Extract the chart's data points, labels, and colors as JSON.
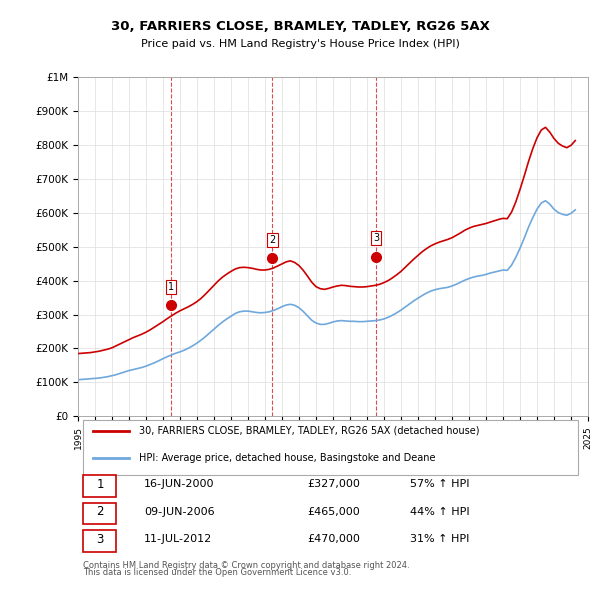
{
  "title": "30, FARRIERS CLOSE, BRAMLEY, TADLEY, RG26 5AX",
  "subtitle": "Price paid vs. HM Land Registry's House Price Index (HPI)",
  "ylim": [
    0,
    1000000
  ],
  "yticks": [
    0,
    100000,
    200000,
    300000,
    400000,
    500000,
    600000,
    700000,
    800000,
    900000,
    1000000
  ],
  "ytick_labels": [
    "£0",
    "£100K",
    "£200K",
    "£300K",
    "£400K",
    "£500K",
    "£600K",
    "£700K",
    "£800K",
    "£900K",
    "£1M"
  ],
  "hpi_color": "#6fa8dc",
  "price_color": "#cc0000",
  "vline_color": "#cc0000",
  "grid_color": "#dddddd",
  "background_color": "#ffffff",
  "transactions": [
    {
      "label": "1",
      "date": "16-JUN-2000",
      "year": 2000.46,
      "price": 327000,
      "hpi_pct": "57% ↑ HPI"
    },
    {
      "label": "2",
      "date": "09-JUN-2006",
      "year": 2006.44,
      "price": 465000,
      "hpi_pct": "44% ↑ HPI"
    },
    {
      "label": "3",
      "date": "11-JUL-2012",
      "year": 2012.53,
      "price": 470000,
      "hpi_pct": "31% ↑ HPI"
    }
  ],
  "legend_line1": "30, FARRIERS CLOSE, BRAMLEY, TADLEY, RG26 5AX (detached house)",
  "legend_line2": "HPI: Average price, detached house, Basingstoke and Deane",
  "footnote1": "Contains HM Land Registry data © Crown copyright and database right 2024.",
  "footnote2": "This data is licensed under the Open Government Licence v3.0.",
  "hpi_data": {
    "years": [
      1995.0,
      1995.25,
      1995.5,
      1995.75,
      1996.0,
      1996.25,
      1996.5,
      1996.75,
      1997.0,
      1997.25,
      1997.5,
      1997.75,
      1998.0,
      1998.25,
      1998.5,
      1998.75,
      1999.0,
      1999.25,
      1999.5,
      1999.75,
      2000.0,
      2000.25,
      2000.5,
      2000.75,
      2001.0,
      2001.25,
      2001.5,
      2001.75,
      2002.0,
      2002.25,
      2002.5,
      2002.75,
      2003.0,
      2003.25,
      2003.5,
      2003.75,
      2004.0,
      2004.25,
      2004.5,
      2004.75,
      2005.0,
      2005.25,
      2005.5,
      2005.75,
      2006.0,
      2006.25,
      2006.5,
      2006.75,
      2007.0,
      2007.25,
      2007.5,
      2007.75,
      2008.0,
      2008.25,
      2008.5,
      2008.75,
      2009.0,
      2009.25,
      2009.5,
      2009.75,
      2010.0,
      2010.25,
      2010.5,
      2010.75,
      2011.0,
      2011.25,
      2011.5,
      2011.75,
      2012.0,
      2012.25,
      2012.5,
      2012.75,
      2013.0,
      2013.25,
      2013.5,
      2013.75,
      2014.0,
      2014.25,
      2014.5,
      2014.75,
      2015.0,
      2015.25,
      2015.5,
      2015.75,
      2016.0,
      2016.25,
      2016.5,
      2016.75,
      2017.0,
      2017.25,
      2017.5,
      2017.75,
      2018.0,
      2018.25,
      2018.5,
      2018.75,
      2019.0,
      2019.25,
      2019.5,
      2019.75,
      2020.0,
      2020.25,
      2020.5,
      2020.75,
      2021.0,
      2021.25,
      2021.5,
      2021.75,
      2022.0,
      2022.25,
      2022.5,
      2022.75,
      2023.0,
      2023.25,
      2023.5,
      2023.75,
      2024.0,
      2024.25
    ],
    "values": [
      108000,
      109000,
      110000,
      111000,
      112000,
      113000,
      115000,
      117000,
      120000,
      123000,
      127000,
      131000,
      135000,
      138000,
      141000,
      144000,
      148000,
      153000,
      158000,
      164000,
      170000,
      176000,
      181000,
      186000,
      190000,
      195000,
      201000,
      208000,
      216000,
      225000,
      235000,
      246000,
      257000,
      268000,
      278000,
      287000,
      295000,
      303000,
      308000,
      310000,
      310000,
      308000,
      306000,
      305000,
      306000,
      308000,
      312000,
      317000,
      323000,
      328000,
      330000,
      327000,
      320000,
      309000,
      296000,
      283000,
      275000,
      271000,
      271000,
      274000,
      278000,
      281000,
      282000,
      281000,
      280000,
      280000,
      279000,
      279000,
      280000,
      281000,
      282000,
      284000,
      287000,
      292000,
      298000,
      305000,
      313000,
      322000,
      331000,
      340000,
      348000,
      356000,
      363000,
      369000,
      373000,
      376000,
      378000,
      380000,
      384000,
      389000,
      395000,
      401000,
      406000,
      410000,
      413000,
      415000,
      418000,
      422000,
      425000,
      428000,
      431000,
      430000,
      445000,
      468000,
      495000,
      525000,
      557000,
      585000,
      610000,
      628000,
      635000,
      625000,
      610000,
      600000,
      595000,
      592000,
      598000,
      608000
    ]
  },
  "price_paid_data": {
    "years": [
      1995.0,
      1995.25,
      1995.5,
      1995.75,
      1996.0,
      1996.25,
      1996.5,
      1996.75,
      1997.0,
      1997.25,
      1997.5,
      1997.75,
      1998.0,
      1998.25,
      1998.5,
      1998.75,
      1999.0,
      1999.25,
      1999.5,
      1999.75,
      2000.0,
      2000.25,
      2000.5,
      2000.75,
      2001.0,
      2001.25,
      2001.5,
      2001.75,
      2002.0,
      2002.25,
      2002.5,
      2002.75,
      2003.0,
      2003.25,
      2003.5,
      2003.75,
      2004.0,
      2004.25,
      2004.5,
      2004.75,
      2005.0,
      2005.25,
      2005.5,
      2005.75,
      2006.0,
      2006.25,
      2006.5,
      2006.75,
      2007.0,
      2007.25,
      2007.5,
      2007.75,
      2008.0,
      2008.25,
      2008.5,
      2008.75,
      2009.0,
      2009.25,
      2009.5,
      2009.75,
      2010.0,
      2010.25,
      2010.5,
      2010.75,
      2011.0,
      2011.25,
      2011.5,
      2011.75,
      2012.0,
      2012.25,
      2012.5,
      2012.75,
      2013.0,
      2013.25,
      2013.5,
      2013.75,
      2014.0,
      2014.25,
      2014.5,
      2014.75,
      2015.0,
      2015.25,
      2015.5,
      2015.75,
      2016.0,
      2016.25,
      2016.5,
      2016.75,
      2017.0,
      2017.25,
      2017.5,
      2017.75,
      2018.0,
      2018.25,
      2018.5,
      2018.75,
      2019.0,
      2019.25,
      2019.5,
      2019.75,
      2020.0,
      2020.25,
      2020.5,
      2020.75,
      2021.0,
      2021.25,
      2021.5,
      2021.75,
      2022.0,
      2022.25,
      2022.5,
      2022.75,
      2023.0,
      2023.25,
      2023.5,
      2023.75,
      2024.0,
      2024.25
    ],
    "values": [
      185000,
      186000,
      187000,
      188000,
      190000,
      192000,
      195000,
      198000,
      202000,
      208000,
      214000,
      220000,
      226000,
      232000,
      237000,
      242000,
      248000,
      255000,
      263000,
      271000,
      279000,
      288000,
      296000,
      304000,
      311000,
      317000,
      323000,
      330000,
      338000,
      348000,
      360000,
      373000,
      386000,
      399000,
      410000,
      419000,
      427000,
      434000,
      438000,
      439000,
      438000,
      436000,
      433000,
      431000,
      431000,
      433000,
      437000,
      443000,
      449000,
      455000,
      458000,
      453000,
      444000,
      430000,
      413000,
      395000,
      382000,
      376000,
      374000,
      377000,
      381000,
      384000,
      386000,
      385000,
      383000,
      382000,
      381000,
      381000,
      382000,
      384000,
      386000,
      389000,
      394000,
      400000,
      408000,
      417000,
      427000,
      439000,
      451000,
      463000,
      474000,
      485000,
      494000,
      502000,
      508000,
      513000,
      517000,
      521000,
      526000,
      533000,
      540000,
      548000,
      554000,
      559000,
      562000,
      565000,
      568000,
      572000,
      576000,
      580000,
      583000,
      582000,
      601000,
      631000,
      668000,
      708000,
      750000,
      788000,
      820000,
      843000,
      851000,
      837000,
      818000,
      804000,
      796000,
      791000,
      798000,
      812000
    ]
  }
}
